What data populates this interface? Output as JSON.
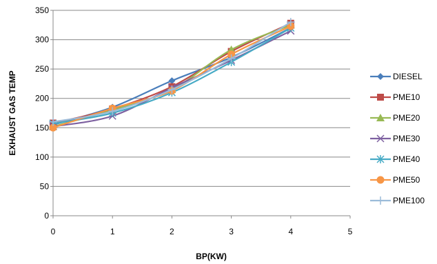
{
  "chart_data": {
    "type": "line",
    "xlabel": "BP(KW)",
    "ylabel": "EXHAUST GAS TEMP",
    "xlim": [
      0,
      5
    ],
    "ylim": [
      0,
      350
    ],
    "x_ticks": [
      "0",
      "1",
      "2",
      "3",
      "4",
      "5"
    ],
    "y_ticks": [
      "0",
      "50",
      "100",
      "150",
      "200",
      "250",
      "300",
      "350"
    ],
    "grid": "horizontal",
    "legend_position": "right",
    "x": [
      0,
      1,
      2,
      3,
      4
    ],
    "series": [
      {
        "name": "DIESEL",
        "color": "#4a7ebb",
        "marker": "diamond",
        "values": [
          155,
          185,
          230,
          270,
          320
        ]
      },
      {
        "name": "PME10",
        "color": "#be4b48",
        "marker": "square",
        "values": [
          158,
          182,
          220,
          280,
          328
        ]
      },
      {
        "name": "PME20",
        "color": "#98b954",
        "marker": "triangle",
        "values": [
          152,
          180,
          215,
          283,
          325
        ]
      },
      {
        "name": "PME30",
        "color": "#7d60a0",
        "marker": "x",
        "values": [
          152,
          170,
          218,
          265,
          315
        ]
      },
      {
        "name": "PME40",
        "color": "#46aac5",
        "marker": "star",
        "values": [
          157,
          175,
          210,
          262,
          320
        ]
      },
      {
        "name": "PME50",
        "color": "#f79646",
        "marker": "circle",
        "values": [
          150,
          183,
          213,
          275,
          323
        ]
      },
      {
        "name": "PME100",
        "color": "#9bbbd9",
        "marker": "plus",
        "values": [
          160,
          178,
          215,
          268,
          330
        ]
      }
    ]
  }
}
